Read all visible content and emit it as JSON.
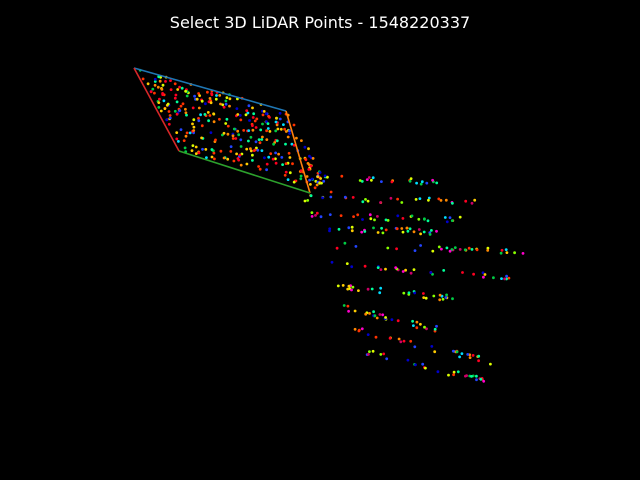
{
  "window": {
    "title": "Select 3D LiDAR Points - 1548220337",
    "background": "#000000"
  },
  "selection_polygon": {
    "edge_colors": [
      "#1f77b4",
      "#ff7f0e",
      "#2ca02c",
      "#d62728"
    ]
  },
  "point_palette": [
    "#ff0022",
    "#ff3300",
    "#ff8800",
    "#ffcc00",
    "#ddff00",
    "#88ff00",
    "#00cc44",
    "#00ff99",
    "#00ddff",
    "#2244ff",
    "#0000cc",
    "#ff00cc",
    "#cc0066"
  ]
}
